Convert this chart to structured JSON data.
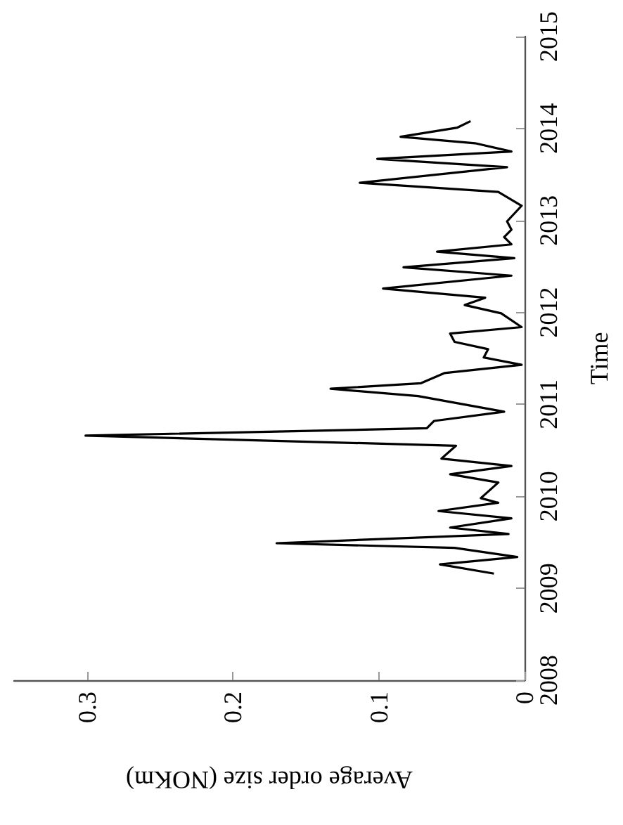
{
  "chart_data": {
    "type": "line",
    "xlabel": "Average order size (NOKm)",
    "ylabel": "Time",
    "x": [
      0.021,
      0.058,
      0.005,
      0.048,
      0.17,
      0.011,
      0.051,
      0.009,
      0.059,
      0.018,
      0.03,
      0.018,
      0.051,
      0.009,
      0.057,
      0.047,
      0.301,
      0.067,
      0.062,
      0.014,
      0.073,
      0.133,
      0.071,
      0.055,
      0.002,
      0.028,
      0.025,
      0.048,
      0.051,
      0.002,
      0.016,
      0.041,
      0.027,
      0.097,
      0.009,
      0.083,
      0.007,
      0.06,
      0.009,
      0.014,
      0.009,
      0.012,
      0.002,
      0.018,
      0.113,
      0.012,
      0.101,
      0.009,
      0.034,
      0.085,
      0.046,
      0.037
    ],
    "series": [
      {
        "color": "#000000",
        "values": [
          2009.16,
          2009.26,
          2009.34,
          2009.44,
          2009.49,
          2009.59,
          2009.66,
          2009.76,
          2009.84,
          2009.93,
          2009.98,
          2010.15,
          2010.24,
          2010.33,
          2010.41,
          2010.55,
          2010.66,
          2010.74,
          2010.82,
          2010.92,
          2011.09,
          2011.17,
          2011.23,
          2011.34,
          2011.43,
          2011.51,
          2011.6,
          2011.68,
          2011.77,
          2011.84,
          2011.99,
          2012.08,
          2012.16,
          2012.26,
          2012.4,
          2012.49,
          2012.59,
          2012.66,
          2012.74,
          2012.82,
          2012.9,
          2012.99,
          2013.16,
          2013.31,
          2013.41,
          2013.58,
          2013.67,
          2013.75,
          2013.84,
          2013.91,
          2014.01,
          2014.08
        ]
      }
    ],
    "xlim": [
      0.35,
      0
    ],
    "xticks": [
      0.3,
      0.2,
      0.1,
      0
    ],
    "ylim": [
      2008,
      2015
    ],
    "yticks": [
      2008,
      2009,
      2010,
      2011,
      2012,
      2013,
      2014,
      2015
    ],
    "marker": "none",
    "line_style": "solid"
  }
}
